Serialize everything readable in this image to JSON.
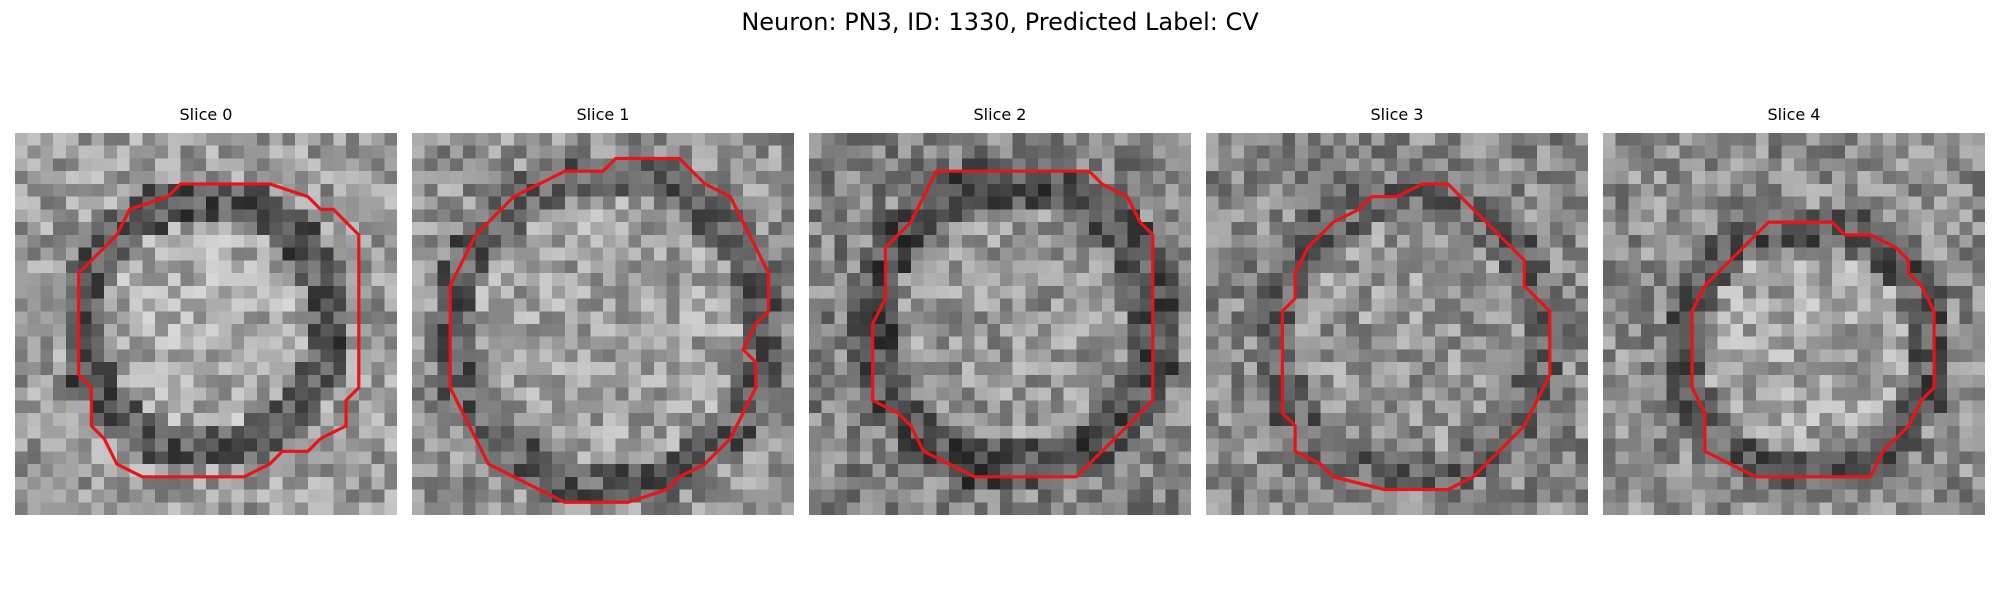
{
  "figure": {
    "title": "Neuron: PN3, ID: 1330, Predicted Label: CV",
    "panels": [
      {
        "title": "Slice 0",
        "contour_color": "#e8141a"
      },
      {
        "title": "Slice 1",
        "contour_color": "#e8141a"
      },
      {
        "title": "Slice 2",
        "contour_color": "#e8141a"
      },
      {
        "title": "Slice 3",
        "contour_color": "#e8141a"
      },
      {
        "title": "Slice 4",
        "contour_color": "#e8141a"
      }
    ]
  }
}
